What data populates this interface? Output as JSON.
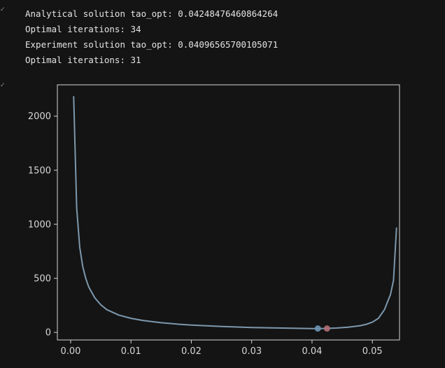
{
  "cells": {
    "output_cell_marker": "✓",
    "plot_cell_marker": "✓"
  },
  "output": {
    "lines": [
      "Analytical solution tao_opt: 0.04248476460864264",
      "Optimal iterations: 34",
      "Experiment solution tao_opt: 0.04096565700105071",
      "Optimal iterations: 31"
    ]
  },
  "colors": {
    "background": "#141414",
    "text": "#e4e4e4",
    "axis": "#d6d6d6",
    "curve": "#7d98ad",
    "experimental_point": "#6d93b3",
    "analytical_point": "#b36d74"
  },
  "chart_data": {
    "type": "line",
    "title": "",
    "xlabel": "",
    "ylabel": "",
    "xlim": [
      -0.0022,
      0.0545
    ],
    "ylim": [
      -70,
      2290
    ],
    "x_ticks": [
      0.0,
      0.01,
      0.02,
      0.03,
      0.04,
      0.05
    ],
    "x_tick_labels": [
      "0.00",
      "0.01",
      "0.02",
      "0.03",
      "0.04",
      "0.05"
    ],
    "y_ticks": [
      0,
      500,
      1000,
      1500,
      2000
    ],
    "y_tick_labels": [
      "0",
      "500",
      "1000",
      "1500",
      "2000"
    ],
    "grid": false,
    "series": [
      {
        "x": [
          0.0005,
          0.001,
          0.0015,
          0.002,
          0.0025,
          0.003,
          0.004,
          0.005,
          0.006,
          0.008,
          0.01,
          0.012,
          0.015,
          0.018,
          0.02,
          0.025,
          0.03,
          0.035,
          0.04,
          0.042,
          0.044,
          0.046,
          0.048,
          0.049,
          0.05,
          0.051,
          0.052,
          0.0525,
          0.053,
          0.0535,
          0.054
        ],
        "y": [
          2180,
          1150,
          790,
          610,
          500,
          420,
          320,
          255,
          210,
          160,
          130,
          110,
          90,
          75,
          68,
          55,
          45,
          40,
          35,
          36,
          40,
          48,
          62,
          75,
          95,
          130,
          210,
          280,
          350,
          480,
          965
        ]
      }
    ],
    "points": [
      {
        "label": "",
        "x": 0.04096565700105071,
        "y": 36
      },
      {
        "label": "",
        "x": 0.04248476460864264,
        "y": 36
      }
    ]
  }
}
